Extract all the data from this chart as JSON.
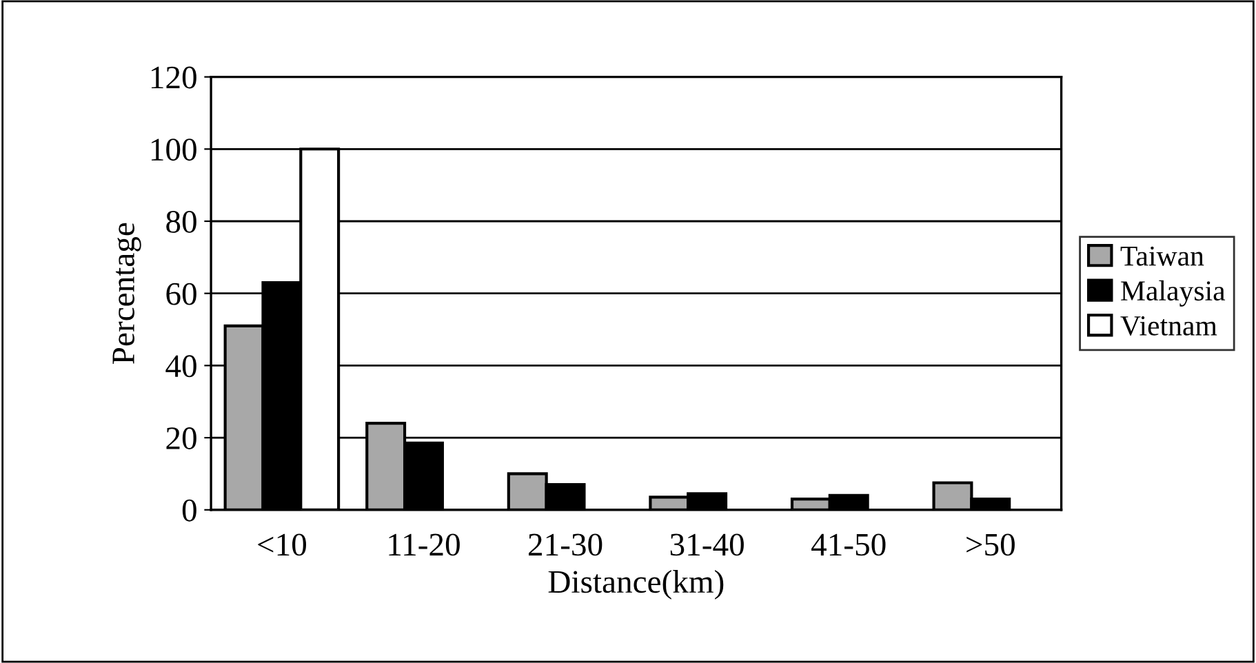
{
  "chart_data": {
    "type": "bar",
    "xlabel": "Distance(km)",
    "ylabel": "Percentage",
    "categories": [
      "<10",
      "11-20",
      "21-30",
      "31-40",
      "41-50",
      ">50"
    ],
    "series": [
      {
        "name": "Taiwan",
        "color": "#a8a8a8",
        "values": [
          51,
          24,
          10,
          3.5,
          3,
          7.5
        ]
      },
      {
        "name": "Malaysia",
        "color": "#000000",
        "values": [
          63,
          18.5,
          7,
          4.5,
          4,
          3
        ]
      },
      {
        "name": "Vietnam",
        "color": "#ffffff",
        "values": [
          100,
          null,
          null,
          null,
          null,
          null
        ]
      }
    ],
    "ylim": [
      0,
      120
    ],
    "yticks": [
      0,
      20,
      40,
      60,
      80,
      100,
      120
    ],
    "grid": "y",
    "legend": "right"
  }
}
